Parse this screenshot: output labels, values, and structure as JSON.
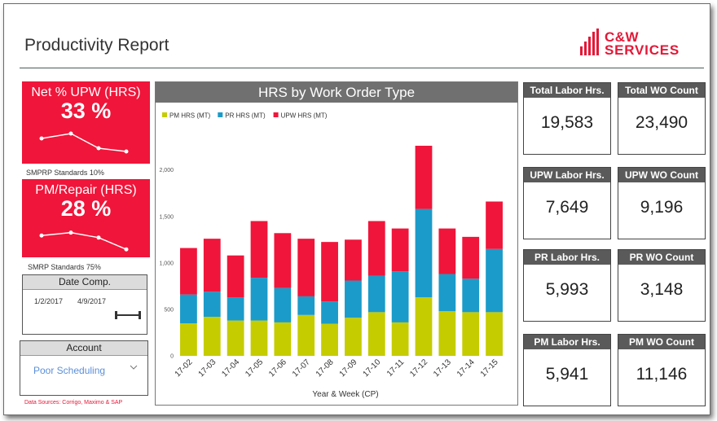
{
  "header": {
    "title": "Productivity Report",
    "logo_line1": "C&W",
    "logo_line2": "SERVICES"
  },
  "cards": {
    "upw": {
      "label": "Net % UPW (HRS)",
      "value": "33 %",
      "caption": "SMPRP Standards 10%",
      "trend": [
        0.55,
        0.7,
        0.25,
        0.15
      ]
    },
    "pm": {
      "label": "PM/Repair (HRS)",
      "value": "28 %",
      "caption": "SMRP Standards 75%",
      "trend": [
        0.52,
        0.62,
        0.45,
        0.05
      ]
    }
  },
  "date_panel": {
    "title": "Date Comp.",
    "start": "1/2/2017",
    "end": "4/9/2017"
  },
  "account_panel": {
    "title": "Account",
    "selected": "Poor Scheduling"
  },
  "source_note": "Data Sources: Corrigo, Maximo & SAP",
  "chart_title": "HRS by Work Order Type",
  "chart_data": {
    "type": "bar",
    "stacked": true,
    "title": "HRS by Work Order Type",
    "xlabel": "Year & Week (CP)",
    "ylabel": "",
    "ylim": [
      0,
      2400
    ],
    "yticks": [
      0,
      500,
      1000,
      1500,
      2000
    ],
    "ytick_labels": [
      "0",
      "500",
      "1,000",
      "1,500",
      "2,000"
    ],
    "grid": false,
    "legend_position": "top-left",
    "categories": [
      "17-02",
      "17-03",
      "17-04",
      "17-05",
      "17-06",
      "17-07",
      "17-08",
      "17-09",
      "17-10",
      "17-11",
      "17-12",
      "17-13",
      "17-14",
      "17-15"
    ],
    "series": [
      {
        "name": "PM HRS (MT)",
        "color": "#c5cc00",
        "values": [
          350,
          420,
          380,
          380,
          360,
          440,
          345,
          410,
          470,
          360,
          630,
          480,
          470,
          470
        ]
      },
      {
        "name": "PR HRS (MT)",
        "color": "#1b9bc9",
        "values": [
          310,
          270,
          250,
          460,
          370,
          200,
          240,
          400,
          390,
          550,
          950,
          400,
          360,
          680
        ]
      },
      {
        "name": "UPW HRS (MT)",
        "color": "#f0153a",
        "values": [
          500,
          570,
          450,
          610,
          590,
          620,
          640,
          440,
          590,
          460,
          680,
          490,
          450,
          510
        ]
      }
    ]
  },
  "kpis": [
    {
      "label": "Total Labor Hrs.",
      "value": "19,583"
    },
    {
      "label": "Total WO Count",
      "value": "23,490"
    },
    {
      "label": "UPW Labor Hrs.",
      "value": "7,649"
    },
    {
      "label": "UPW WO Count",
      "value": "9,196"
    },
    {
      "label": "PR Labor Hrs.",
      "value": "5,993"
    },
    {
      "label": "PR WO Count",
      "value": "3,148"
    },
    {
      "label": "PM Labor Hrs.",
      "value": "5,941"
    },
    {
      "label": "PM WO Count",
      "value": "11,146"
    }
  ]
}
